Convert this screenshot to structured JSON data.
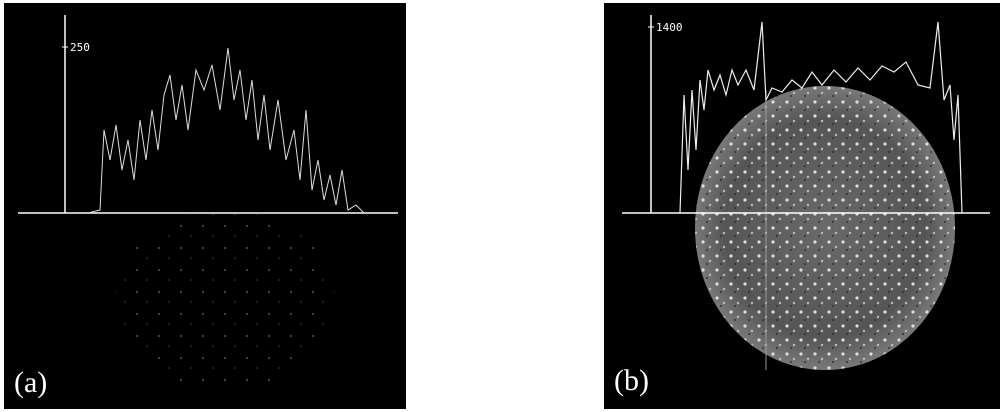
{
  "panels": [
    {
      "axis_label": "250",
      "caption": "(a)"
    },
    {
      "axis_label": "1400",
      "caption": "(b)"
    }
  ]
}
